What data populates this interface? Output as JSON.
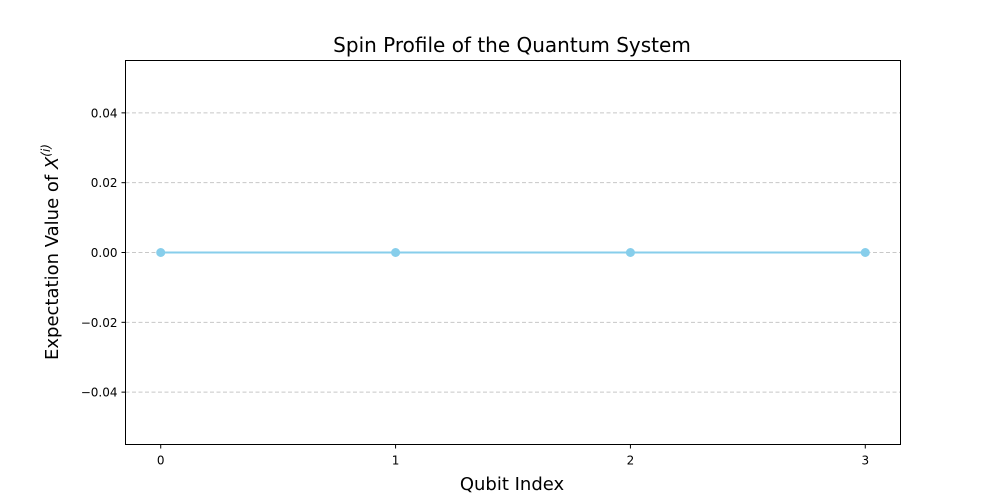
{
  "chart_data": {
    "type": "line",
    "title": "Spin Profile of the Quantum System",
    "xlabel": "Qubit Index",
    "ylabel_main": "Expectation Value of ",
    "ylabel_symbol": "X",
    "ylabel_sup": "(i)",
    "x": [
      0,
      1,
      2,
      3
    ],
    "series": [
      {
        "values": [
          0,
          0,
          0,
          0
        ],
        "color": "#87ceeb",
        "marker": "circle"
      }
    ],
    "xlim": [
      -0.15,
      3.15
    ],
    "ylim": [
      -0.055,
      0.055
    ],
    "xticks": [
      0,
      1,
      2,
      3
    ],
    "xtick_labels": [
      "0",
      "1",
      "2",
      "3"
    ],
    "yticks": [
      -0.04,
      -0.02,
      0.0,
      0.02,
      0.04
    ],
    "ytick_labels": [
      "−0.04",
      "−0.02",
      "0.00",
      "0.02",
      "0.04"
    ],
    "grid": "y-dashed",
    "grid_color": "#c8c8c8",
    "legend": "none"
  }
}
